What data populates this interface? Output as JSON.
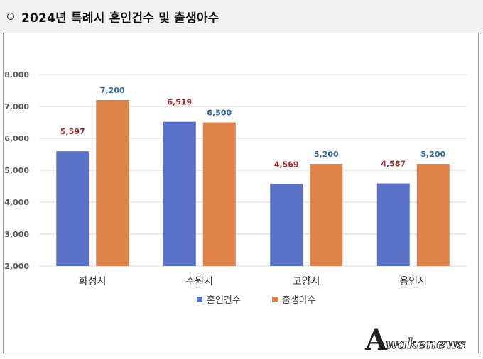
{
  "header": {
    "title": "2024년 특례시 혼인건수 및 출생아수"
  },
  "chart_data": {
    "type": "bar",
    "categories": [
      "화성시",
      "수원시",
      "고양시",
      "용인시"
    ],
    "series": [
      {
        "name": "혼인건수",
        "color": "#5b72c9",
        "values": [
          5597,
          6519,
          4569,
          4587
        ],
        "labels": [
          "5,597",
          "6,519",
          "4,569",
          "4,587"
        ],
        "label_color": "#a52a2a"
      },
      {
        "name": "출생아수",
        "color": "#e0834a",
        "values": [
          7200,
          6500,
          5200,
          5200
        ],
        "labels": [
          "7,200",
          "6,500",
          "5,200",
          "5,200"
        ],
        "label_color": "#2e6aa8"
      }
    ],
    "yticks": [
      "2,000",
      "3,000",
      "4,000",
      "5,000",
      "6,000",
      "7,000",
      "8,000"
    ],
    "ylim": [
      2000,
      8000
    ],
    "grid": true,
    "legend": "bottom-center"
  },
  "watermark": {
    "letter": "A",
    "text": "wakenews"
  }
}
